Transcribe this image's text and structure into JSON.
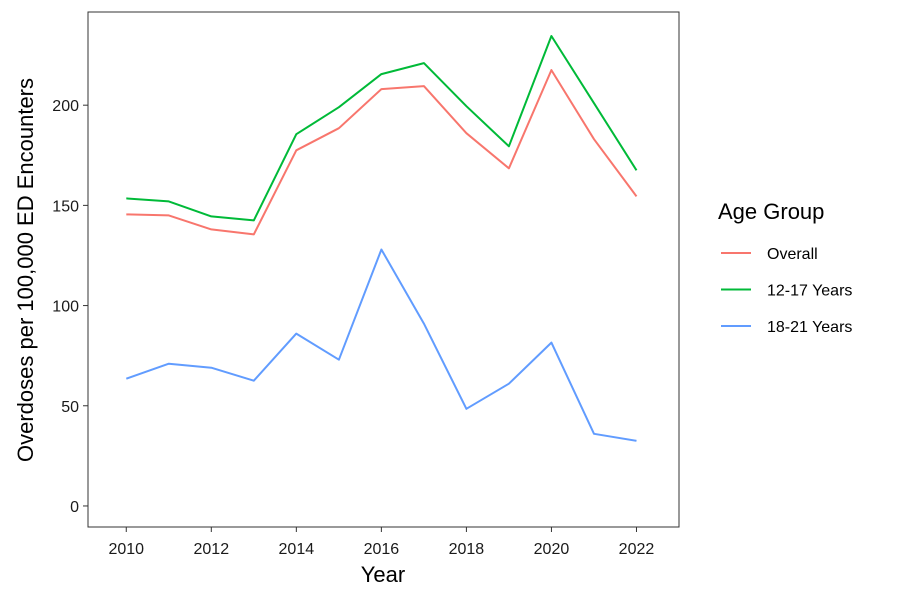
{
  "chart_data": {
    "type": "line",
    "title": "",
    "xlabel": "Year",
    "ylabel": "Overdoses per 100,000 ED Encounters",
    "x": [
      2010,
      2011,
      2012,
      2013,
      2014,
      2015,
      2016,
      2017,
      2018,
      2019,
      2020,
      2021,
      2022
    ],
    "x_ticks": [
      2010,
      2012,
      2014,
      2016,
      2018,
      2020,
      2022
    ],
    "y_ticks": [
      0,
      50,
      100,
      150,
      200
    ],
    "xlim": [
      2009.1,
      2023.0
    ],
    "ylim": [
      -10.5,
      246.5
    ],
    "grid": false,
    "legend": {
      "title": "Age Group",
      "position": "right"
    },
    "series": [
      {
        "name": "Overall",
        "color": "#F8766D",
        "values": [
          145.5,
          145,
          138,
          135.5,
          177.5,
          188.5,
          208,
          209.5,
          186,
          168.5,
          217.5,
          183,
          154.5
        ]
      },
      {
        "name": "12-17 Years",
        "color": "#00BA38",
        "values": [
          153.5,
          152,
          144.5,
          142.5,
          185.5,
          199,
          215.5,
          221,
          199.5,
          179.5,
          234.5,
          201,
          167.5
        ]
      },
      {
        "name": "18-21 Years",
        "color": "#619CFF",
        "values": [
          63.5,
          71,
          69,
          62.5,
          86,
          73,
          128,
          91,
          48.5,
          61,
          81.5,
          36,
          32.5
        ]
      }
    ]
  }
}
